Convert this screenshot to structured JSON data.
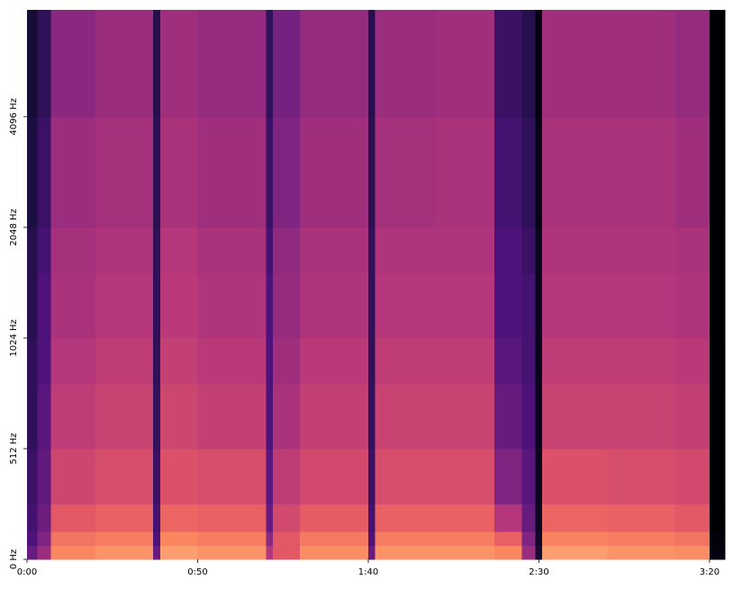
{
  "chart_data": {
    "type": "spectrogram",
    "colormap": "magma",
    "zlim": [
      -80,
      0
    ],
    "yscale": "symlog",
    "linthresh": 512,
    "xlim": [
      0,
      204.5
    ],
    "ylim": [
      0,
      8000
    ],
    "x_edges": [
      0,
      3,
      7,
      20,
      37,
      39,
      50,
      70,
      72,
      80,
      100,
      102,
      120,
      137,
      145,
      149,
      151,
      170,
      190,
      200,
      204.5
    ],
    "y_edges": [
      0,
      64,
      128,
      256,
      512,
      768,
      1024,
      1536,
      2048,
      4096,
      8000
    ],
    "values": [
      [
        -55,
        -60,
        -62,
        -64,
        -66,
        -66,
        -68,
        -68,
        -70,
        -72
      ],
      [
        -45,
        -50,
        -54,
        -56,
        -58,
        -60,
        -60,
        -62,
        -64,
        -66
      ],
      [
        -20,
        -24,
        -30,
        -35,
        -38,
        -40,
        -42,
        -43,
        -45,
        -48
      ],
      [
        -18,
        -22,
        -28,
        -33,
        -36,
        -38,
        -40,
        -41,
        -43,
        -45
      ],
      [
        -55,
        -60,
        -62,
        -64,
        -65,
        -66,
        -66,
        -66,
        -67,
        -68
      ],
      [
        -16,
        -20,
        -27,
        -32,
        -35,
        -37,
        -39,
        -40,
        -42,
        -44
      ],
      [
        -18,
        -22,
        -28,
        -33,
        -37,
        -39,
        -41,
        -42,
        -44,
        -46
      ],
      [
        -40,
        -48,
        -55,
        -58,
        -60,
        -60,
        -60,
        -62,
        -64,
        -66
      ],
      [
        -30,
        -30,
        -34,
        -38,
        -42,
        -44,
        -46,
        -47,
        -50,
        -52
      ],
      [
        -19,
        -23,
        -29,
        -34,
        -37,
        -39,
        -41,
        -42,
        -44,
        -46
      ],
      [
        -55,
        -60,
        -62,
        -64,
        -65,
        -66,
        -66,
        -66,
        -67,
        -68
      ],
      [
        -18,
        -22,
        -28,
        -33,
        -36,
        -38,
        -40,
        -41,
        -43,
        -45
      ],
      [
        -18,
        -22,
        -28,
        -33,
        -36,
        -38,
        -40,
        -41,
        -42,
        -44
      ],
      [
        -20,
        -28,
        -40,
        -50,
        -55,
        -58,
        -60,
        -60,
        -62,
        -64
      ],
      [
        -45,
        -50,
        -55,
        -58,
        -60,
        -62,
        -62,
        -64,
        -66,
        -68
      ],
      [
        -72,
        -74,
        -75,
        -76,
        -76,
        -76,
        -76,
        -76,
        -77,
        -78
      ],
      [
        -16,
        -21,
        -27,
        -32,
        -36,
        -38,
        -40,
        -41,
        -42,
        -44
      ],
      [
        -18,
        -22,
        -28,
        -33,
        -36,
        -38,
        -40,
        -41,
        -42,
        -44
      ],
      [
        -19,
        -24,
        -30,
        -34,
        -37,
        -39,
        -41,
        -42,
        -44,
        -46
      ],
      [
        -78,
        -79,
        -80,
        -80,
        -80,
        -80,
        -80,
        -80,
        -80,
        -80
      ]
    ],
    "xticks": [
      {
        "value": 0,
        "label": "0:00"
      },
      {
        "value": 50,
        "label": "0:50"
      },
      {
        "value": 100,
        "label": "1:40"
      },
      {
        "value": 150,
        "label": "2:30"
      },
      {
        "value": 200,
        "label": "3:20"
      }
    ],
    "yticks": [
      {
        "value": 0,
        "label": "0 Hz"
      },
      {
        "value": 512,
        "label": "512 Hz"
      },
      {
        "value": 1024,
        "label": "1024 Hz"
      },
      {
        "value": 2048,
        "label": "2048 Hz"
      },
      {
        "value": 4096,
        "label": "4096 Hz"
      }
    ]
  }
}
